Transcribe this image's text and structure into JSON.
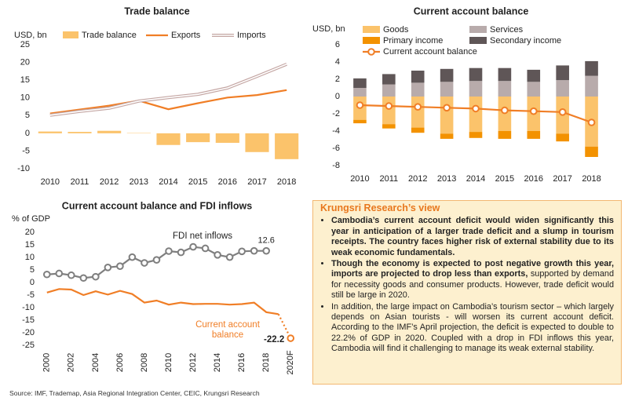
{
  "chart_data": [
    {
      "type": "bar",
      "title": "Trade balance",
      "y_label": "USD, bn",
      "categories": [
        "2010",
        "2011",
        "2012",
        "2013",
        "2014",
        "2015",
        "2016",
        "2017",
        "2018"
      ],
      "series": [
        {
          "name": "Trade balance",
          "type": "bar",
          "color": "#fbc36b",
          "values": [
            0.5,
            0.4,
            0.7,
            0.1,
            -3.3,
            -2.5,
            -2.7,
            -5.3,
            -7.3
          ]
        },
        {
          "name": "Exports",
          "type": "line",
          "color": "#f07e26",
          "values": [
            5.6,
            6.7,
            7.8,
            9.2,
            6.8,
            8.5,
            10.1,
            10.8,
            12.2
          ]
        },
        {
          "name": "Imports",
          "type": "line",
          "style": "double",
          "color": "#c4a6a3",
          "values": [
            5.1,
            6.2,
            7.1,
            9.1,
            10.1,
            11.0,
            12.8,
            16.1,
            19.5
          ]
        }
      ],
      "ylim": [
        -10,
        25
      ],
      "yticks": [
        -10,
        -5,
        0,
        5,
        10,
        15,
        20,
        25
      ],
      "grid": false
    },
    {
      "type": "bar",
      "title": "Current account balance",
      "y_label": "USD, bn",
      "stacked": true,
      "categories": [
        "2010",
        "2011",
        "2012",
        "2013",
        "2014",
        "2015",
        "2016",
        "2017",
        "2018"
      ],
      "series": [
        {
          "name": "Goods",
          "type": "bar",
          "color": "#fbc36b",
          "values": [
            -2.7,
            -3.2,
            -3.6,
            -4.3,
            -4.1,
            -4.0,
            -4.0,
            -4.3,
            -5.8
          ]
        },
        {
          "name": "Services",
          "type": "bar",
          "color": "#b8abab",
          "values": [
            1.0,
            1.4,
            1.6,
            1.7,
            1.8,
            1.8,
            1.7,
            1.9,
            2.4
          ]
        },
        {
          "name": "Primary income",
          "type": "bar",
          "color": "#f39200",
          "values": [
            -0.4,
            -0.5,
            -0.6,
            -0.6,
            -0.7,
            -0.9,
            -0.9,
            -0.9,
            -1.2
          ]
        },
        {
          "name": "Secondary income",
          "type": "bar",
          "color": "#5f5657",
          "values": [
            1.1,
            1.2,
            1.4,
            1.5,
            1.5,
            1.5,
            1.4,
            1.7,
            1.7
          ]
        },
        {
          "name": "Current account balance",
          "type": "line",
          "markers": true,
          "color": "#f07e26",
          "values": [
            -1.0,
            -1.1,
            -1.2,
            -1.3,
            -1.4,
            -1.6,
            -1.7,
            -1.8,
            -3.0
          ]
        }
      ],
      "ylim": [
        -8,
        6
      ],
      "yticks": [
        -8,
        -6,
        -4,
        -2,
        0,
        2,
        4,
        6
      ],
      "grid": false
    },
    {
      "type": "line",
      "title": "Current account balance and FDI inflows",
      "y_label": "% of GDP",
      "categories": [
        "2000",
        null,
        "2002",
        null,
        "2004",
        null,
        "2006",
        null,
        "2008",
        null,
        "2010",
        null,
        "2012",
        null,
        "2014",
        null,
        "2016",
        null,
        "2018",
        null,
        "2020F"
      ],
      "series": [
        {
          "name": "FDI net inflows",
          "type": "line",
          "markers": true,
          "color": "#7f7f7f",
          "values": [
            3.2,
            3.6,
            2.9,
            1.8,
            2.3,
            6.0,
            6.5,
            10.1,
            7.8,
            9.0,
            12.5,
            12.0,
            14.2,
            13.6,
            11.0,
            10.1,
            12.4,
            12.6,
            12.6,
            null,
            null
          ]
        },
        {
          "name": "Current account balance",
          "type": "line",
          "color": "#f07e26",
          "values": [
            -4.0,
            -2.6,
            -2.8,
            -5.0,
            -3.5,
            -4.8,
            -3.3,
            -4.6,
            -8.0,
            -7.2,
            -8.8,
            -8.0,
            -8.6,
            -8.5,
            -8.5,
            -8.8,
            -8.6,
            -8.0,
            -11.8,
            -12.6,
            -22.2
          ]
        }
      ],
      "ylim": [
        -25,
        20
      ],
      "yticks": [
        -25,
        -20,
        -15,
        -10,
        -5,
        0,
        5,
        10,
        15,
        20
      ],
      "grid": false
    }
  ],
  "view": {
    "title": "Krungsri Research’s view",
    "bullets": [
      {
        "bold": "Cambodia’s current account deficit would widen significantly this year in anticipation of a larger trade deficit and a slump in tourism receipts. The country faces higher risk of external stability due to its weak economic fundamentals."
      },
      {
        "bold": "Though the economy is expected to post negative growth this year, imports are projected to drop less than exports,",
        "text": "supported by demand for necessity goods and consumer products. However, trade deficit would still be large in 2020."
      },
      {
        "text": "In addition, the large impact on Cambodia’s tourism sector – which largely depends on Asian tourists - will worsen its current account deficit. According to the IMF’s April projection, the deficit is expected to double to 22.2% of GDP in 2020. Coupled with a drop in FDI inflows this year, Cambodia will find it challenging to manage its weak external stability."
      }
    ]
  },
  "source": "Source: IMF, Trademap, Asia Regional Integration Center, CEIC, Krungsri Research"
}
